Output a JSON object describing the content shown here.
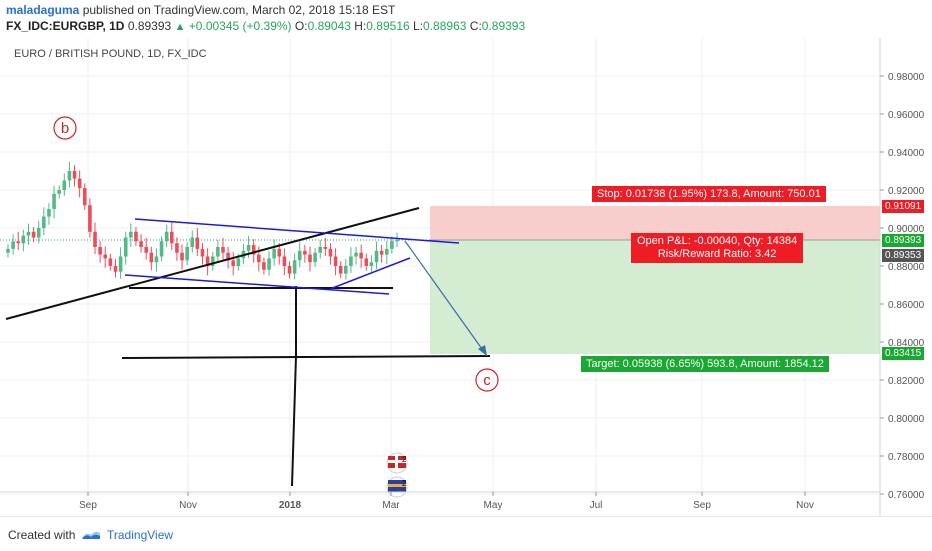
{
  "header": {
    "author": "maladaguma",
    "published_text": "published on",
    "site": "TradingView.com,",
    "date": "March 02, 2018 15:18 EST",
    "symbol": "FX_IDC:EURGBP, 1D",
    "last": "0.89393",
    "change": "+0.00345 (+0.39%)",
    "o_label": "O:",
    "o_val": "0.89043",
    "h_label": "H:",
    "h_val": "0.89516",
    "l_label": "L:",
    "l_val": "0.88963",
    "c_label": "C:",
    "c_val": "0.89393"
  },
  "chart": {
    "title": "EURO / BRITISH POUND, 1D, FX_IDC",
    "wave_b": "b",
    "wave_c": "c",
    "stop_label": "Stop: 0.01738 (1.95%) 173.8, Amount: 750.01",
    "pnl_line1": "Open P&L: -0.00040, Qty: 14384",
    "pnl_line2": "Risk/Reward Ratio: 3.42",
    "target_label": "Target: 0.05938 (6.65%) 593.8, Amount: 1854.12",
    "price_tags": {
      "stop": "0.91091",
      "current": "0.89393",
      "entry": "0.89353",
      "target": "0.83415"
    },
    "colors": {
      "stop_bg": "#f8cecc",
      "target_bg": "#d4ecd2",
      "stop_tag": "#ee1c25",
      "target_tag": "#19a831",
      "up_candle": "#53b987",
      "down_candle": "#eb4d5c"
    }
  },
  "chart_data": {
    "type": "candlestick",
    "title": "EURO / BRITISH POUND, 1D, FX_IDC",
    "yticks": [
      "0.98000",
      "0.96000",
      "0.94000",
      "0.92000",
      "0.90000",
      "0.88000",
      "0.86000",
      "0.84000",
      "0.82000",
      "0.80000",
      "0.78000",
      "0.76000"
    ],
    "xticks": [
      "Sep",
      "Nov",
      "2018",
      "Mar",
      "May",
      "Jul",
      "Sep",
      "Nov"
    ],
    "ylim": [
      0.755,
      0.995
    ],
    "close_series": [
      0.889,
      0.893,
      0.892,
      0.896,
      0.898,
      0.895,
      0.9,
      0.906,
      0.91,
      0.918,
      0.92,
      0.925,
      0.93,
      0.926,
      0.921,
      0.912,
      0.898,
      0.89,
      0.886,
      0.884,
      0.88,
      0.877,
      0.885,
      0.895,
      0.898,
      0.893,
      0.89,
      0.887,
      0.882,
      0.885,
      0.893,
      0.898,
      0.892,
      0.887,
      0.883,
      0.89,
      0.895,
      0.889,
      0.885,
      0.88,
      0.885,
      0.89,
      0.887,
      0.883,
      0.88,
      0.884,
      0.888,
      0.891,
      0.886,
      0.882,
      0.878,
      0.884,
      0.889,
      0.885,
      0.88,
      0.876,
      0.883,
      0.888,
      0.886,
      0.882,
      0.887,
      0.89,
      0.889,
      0.885,
      0.88,
      0.876,
      0.88,
      0.885,
      0.887,
      0.884,
      0.88,
      0.882,
      0.888,
      0.886,
      0.889,
      0.893,
      0.8939
    ]
  }
}
